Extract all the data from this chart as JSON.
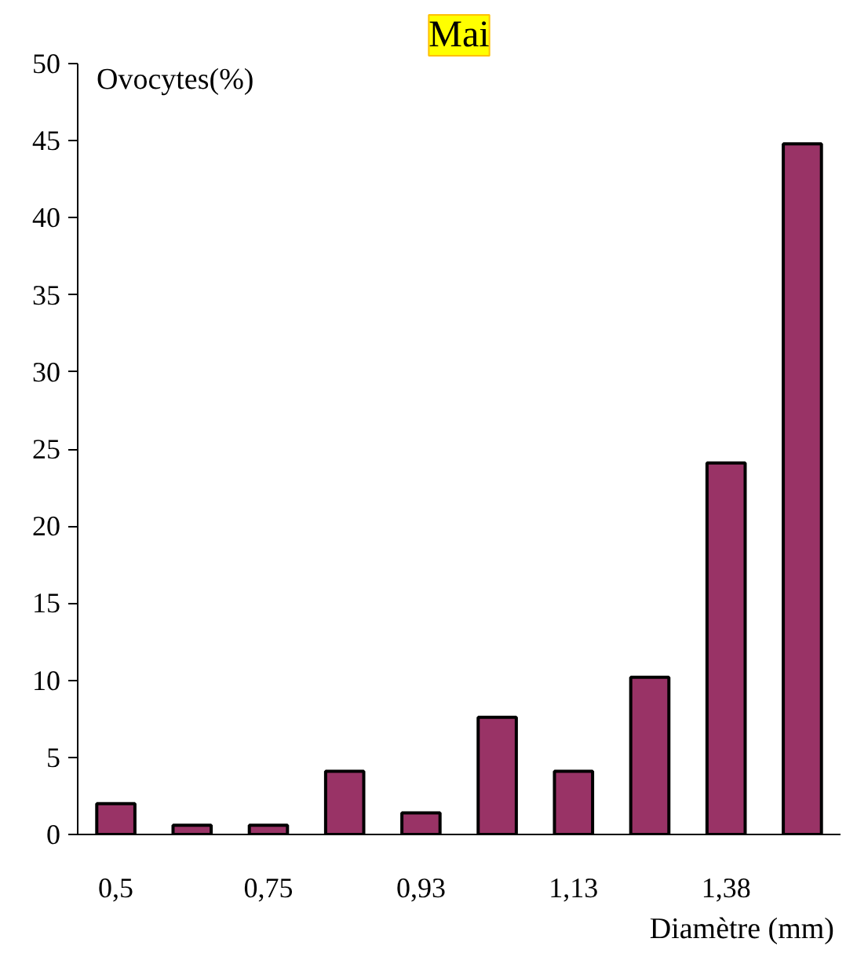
{
  "chart_data": {
    "type": "bar",
    "title": "Mai",
    "xlabel": "Diamètre (mm)",
    "ylabel": "Ovocytes(%)",
    "categories": [
      "0,5",
      null,
      "0,75",
      null,
      "0,93",
      null,
      "1,13",
      null,
      "1,38",
      null
    ],
    "values": [
      2.0,
      0.6,
      0.6,
      4.1,
      1.4,
      7.6,
      4.1,
      10.2,
      24.1,
      44.8
    ],
    "color": "#993366",
    "ylim": [
      0,
      50
    ],
    "yticks": [
      0,
      5,
      10,
      15,
      20,
      25,
      30,
      35,
      40,
      45,
      50
    ],
    "grid": false
  }
}
